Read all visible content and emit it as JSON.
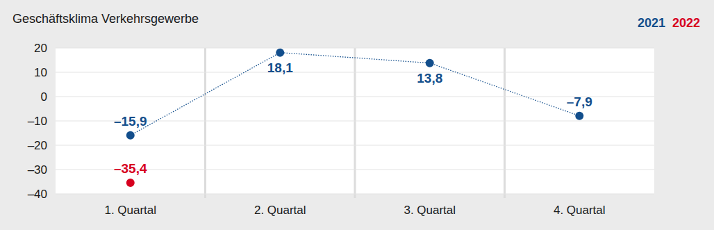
{
  "chart_data": {
    "type": "line",
    "title": "Geschäftsklima Verkehrsgewerbe",
    "categories": [
      "1. Quartal",
      "2. Quartal",
      "3. Quartal",
      "4. Quartal"
    ],
    "series": [
      {
        "name": "2021",
        "color": "#124e8c",
        "values": [
          -15.9,
          18.1,
          13.8,
          -7.9
        ],
        "value_labels": [
          "–15,9",
          "18,1",
          "13,8",
          "–7,9"
        ],
        "marker": "circle",
        "line_style": "dotted"
      },
      {
        "name": "2022",
        "color": "#d7001f",
        "values": [
          -35.4,
          null,
          null,
          null
        ],
        "value_labels": [
          "–35,4",
          null,
          null,
          null
        ],
        "marker": "circle",
        "line_style": "dotted"
      }
    ],
    "ylim": [
      -40,
      20
    ],
    "yticks": [
      {
        "value": -40,
        "label": "–40"
      },
      {
        "value": -30,
        "label": "–30"
      },
      {
        "value": -20,
        "label": "–20"
      },
      {
        "value": -10,
        "label": "–10"
      },
      0,
      10,
      20
    ],
    "grid": true,
    "legend": "top-right",
    "data_labels": true
  }
}
